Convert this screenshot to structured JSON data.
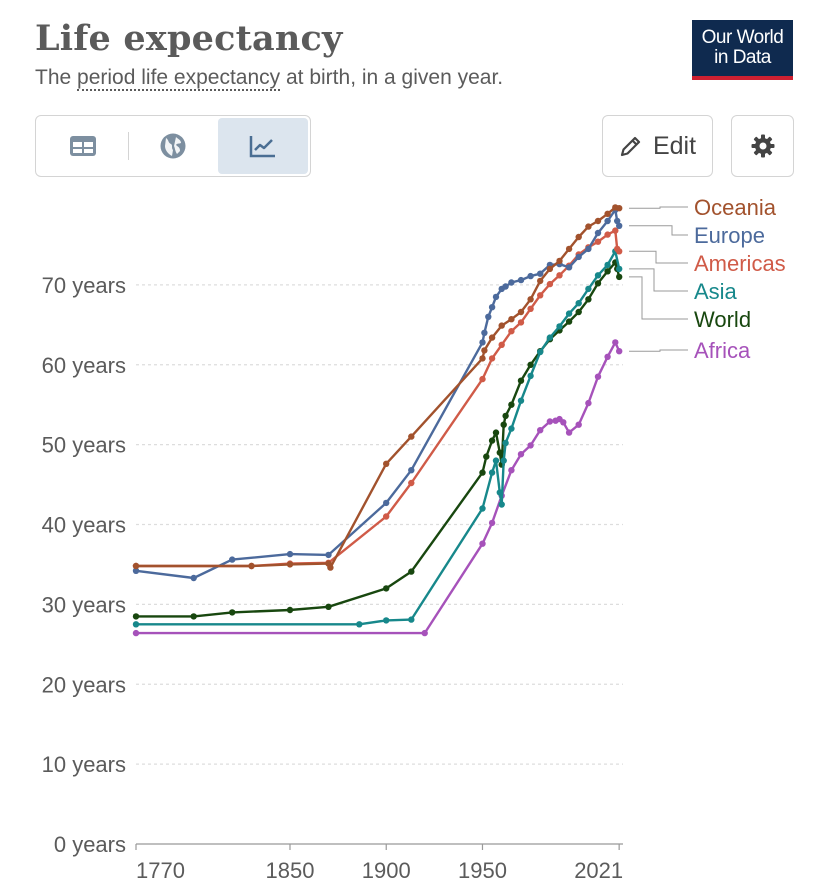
{
  "header": {
    "title": "Life expectancy",
    "subtitle_pre": "The ",
    "subtitle_link": "period life expectancy",
    "subtitle_post": " at birth, in a given year.",
    "logo_line1": "Our World",
    "logo_line2": "in Data"
  },
  "toolbar": {
    "tabs": [
      {
        "name": "table",
        "icon": "table-icon"
      },
      {
        "name": "map",
        "icon": "globe-icon"
      },
      {
        "name": "chart",
        "icon": "line-chart-icon",
        "active": true
      }
    ],
    "edit_label": "Edit",
    "settings_icon": "gear-icon"
  },
  "colors": {
    "Oceania": "#a2522d",
    "Europe": "#4c6a9c",
    "Americas": "#d05b48",
    "Asia": "#17888b",
    "World": "#18470f",
    "Africa": "#a652ba",
    "text": "#5b5b5b",
    "grid": "#dddddd"
  },
  "chart_data": {
    "type": "line",
    "title": "Life expectancy",
    "subtitle": "The period life expectancy at birth, in a given year.",
    "xlabel": "",
    "ylabel": "",
    "xlim": [
      1770,
      2023
    ],
    "ylim": [
      0,
      80
    ],
    "x_ticks": [
      "1770",
      "1850",
      "1900",
      "1950",
      "2021"
    ],
    "x_tick_values": [
      1770,
      1850,
      1900,
      1950,
      2021
    ],
    "y_ticks": [
      "0 years",
      "10 years",
      "20 years",
      "30 years",
      "40 years",
      "50 years",
      "60 years",
      "70 years"
    ],
    "y_tick_values": [
      0,
      10,
      20,
      30,
      40,
      50,
      60,
      70
    ],
    "grid": true,
    "legend": "right, line-end labels",
    "series": [
      {
        "name": "Oceania",
        "x": [
          1770,
          1830,
          1850,
          1870,
          1871,
          1900,
          1913,
          1950,
          1951,
          1955,
          1960,
          1965,
          1970,
          1975,
          1980,
          1985,
          1990,
          1995,
          2000,
          2005,
          2010,
          2015,
          2019,
          2021
        ],
        "y": [
          34.8,
          34.8,
          35.0,
          35.1,
          34.6,
          47.6,
          51.0,
          60.8,
          61.8,
          63.4,
          64.9,
          65.7,
          66.6,
          68.2,
          70.5,
          72.0,
          73.0,
          74.5,
          76.0,
          77.3,
          78.0,
          78.9,
          79.7,
          79.6
        ]
      },
      {
        "name": "Europe",
        "x": [
          1770,
          1800,
          1820,
          1850,
          1870,
          1900,
          1913,
          1950,
          1951,
          1953,
          1955,
          1957,
          1960,
          1962,
          1965,
          1970,
          1975,
          1980,
          1985,
          1990,
          1995,
          2000,
          2005,
          2010,
          2015,
          2019,
          2020,
          2021
        ],
        "y": [
          34.2,
          33.3,
          35.6,
          36.3,
          36.2,
          42.7,
          46.8,
          62.8,
          64.0,
          66.0,
          67.2,
          68.5,
          69.5,
          69.8,
          70.3,
          70.6,
          71.1,
          71.4,
          72.5,
          72.6,
          72.2,
          73.5,
          74.5,
          76.5,
          78.0,
          79.4,
          78.0,
          77.4
        ]
      },
      {
        "name": "Americas",
        "x": [
          1770,
          1830,
          1850,
          1870,
          1900,
          1913,
          1950,
          1955,
          1960,
          1965,
          1970,
          1975,
          1980,
          1985,
          1990,
          1995,
          2000,
          2005,
          2010,
          2015,
          2019,
          2020,
          2021
        ],
        "y": [
          34.8,
          34.8,
          35.1,
          35.2,
          41.0,
          45.2,
          58.2,
          60.8,
          62.5,
          64.2,
          65.3,
          67.0,
          68.7,
          70.1,
          71.2,
          72.4,
          73.8,
          74.7,
          75.4,
          76.3,
          76.8,
          74.5,
          74.2
        ]
      },
      {
        "name": "Asia",
        "x": [
          1770,
          1886,
          1900,
          1913,
          1950,
          1955,
          1957,
          1959,
          1960,
          1961,
          1962,
          1965,
          1970,
          1975,
          1980,
          1985,
          1990,
          1995,
          2000,
          2005,
          2010,
          2015,
          2019,
          2021
        ],
        "y": [
          27.5,
          27.5,
          28.0,
          28.1,
          42.0,
          46.5,
          48.0,
          44.0,
          42.5,
          48.0,
          50.2,
          52.0,
          55.5,
          58.6,
          61.6,
          63.4,
          64.8,
          66.4,
          67.7,
          69.5,
          71.2,
          72.5,
          74.2,
          72.0
        ]
      },
      {
        "name": "World",
        "x": [
          1770,
          1800,
          1820,
          1850,
          1870,
          1900,
          1913,
          1950,
          1952,
          1955,
          1957,
          1959,
          1960,
          1961,
          1962,
          1965,
          1970,
          1975,
          1980,
          1985,
          1990,
          1995,
          2000,
          2005,
          2010,
          2015,
          2019,
          2020,
          2021
        ],
        "y": [
          28.5,
          28.5,
          29.0,
          29.3,
          29.7,
          32.0,
          34.1,
          46.5,
          48.5,
          50.5,
          51.5,
          49.0,
          47.5,
          52.5,
          53.6,
          55.0,
          58.0,
          60.0,
          61.7,
          63.2,
          64.3,
          65.4,
          66.6,
          68.2,
          70.2,
          71.7,
          72.8,
          72.0,
          71.0
        ]
      },
      {
        "name": "Africa",
        "x": [
          1770,
          1920,
          1950,
          1955,
          1960,
          1965,
          1970,
          1975,
          1980,
          1985,
          1988,
          1990,
          1992,
          1995,
          2000,
          2005,
          2010,
          2015,
          2019,
          2021
        ],
        "y": [
          26.4,
          26.4,
          37.6,
          40.2,
          43.6,
          46.8,
          48.8,
          49.9,
          51.8,
          52.9,
          53.0,
          53.2,
          52.8,
          51.5,
          52.5,
          55.2,
          58.5,
          61.0,
          62.8,
          61.7
        ]
      }
    ]
  }
}
